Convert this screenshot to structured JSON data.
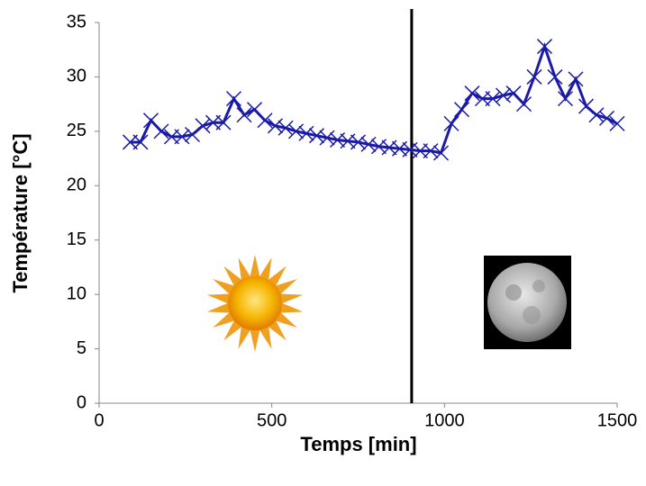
{
  "chart_data": {
    "type": "line",
    "x_label": "Temps [min]",
    "y_label": "Température [°C]",
    "x": [
      90,
      120,
      150,
      180,
      210,
      240,
      270,
      300,
      330,
      360,
      390,
      420,
      450,
      480,
      510,
      540,
      570,
      600,
      630,
      660,
      690,
      720,
      750,
      780,
      810,
      840,
      870,
      900,
      930,
      960,
      990,
      1020,
      1050,
      1080,
      1110,
      1140,
      1170,
      1200,
      1230,
      1260,
      1290,
      1320,
      1350,
      1380,
      1410,
      1440,
      1470,
      1500
    ],
    "series": [
      {
        "color": "#1a1aa8",
        "values": [
          24,
          24,
          26,
          25,
          24.5,
          24.5,
          24.7,
          25.5,
          25.8,
          25.8,
          28,
          26.5,
          27,
          26,
          25.5,
          25.3,
          25,
          24.8,
          24.6,
          24.4,
          24.2,
          24.1,
          24,
          23.8,
          23.6,
          23.5,
          23.4,
          23.3,
          23.2,
          23.2,
          23,
          25.7,
          27,
          28.5,
          28,
          28,
          28.3,
          28.5,
          27.5,
          30,
          32.8,
          30,
          28,
          29.8,
          27.3,
          26.5,
          26.2,
          25.7
        ]
      }
    ],
    "vline": 905,
    "xlim": [
      0,
      1500
    ],
    "xticks": [
      0,
      500,
      1000,
      1500
    ],
    "ylim": [
      0,
      35
    ],
    "yticks": [
      0,
      5,
      10,
      15,
      20,
      25,
      30,
      35
    ],
    "grid": false
  }
}
